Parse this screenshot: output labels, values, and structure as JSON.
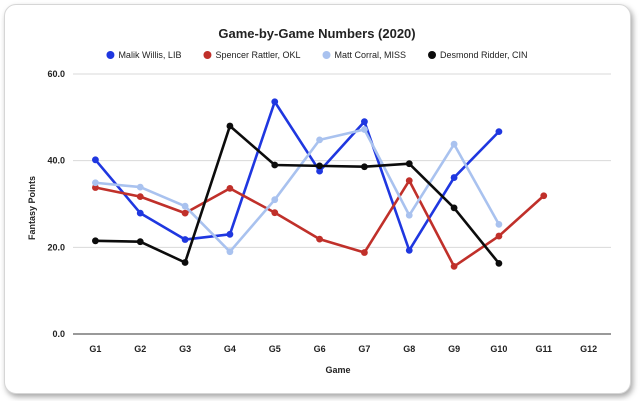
{
  "chart_data": {
    "type": "line",
    "title": "Game-by-Game Numbers (2020)",
    "xlabel": "Game",
    "ylabel": "Fantasy Points",
    "categories": [
      "G1",
      "G2",
      "G3",
      "G4",
      "G5",
      "G6",
      "G7",
      "G8",
      "G9",
      "G10",
      "G11",
      "G12"
    ],
    "ylim": [
      0,
      60
    ],
    "yticks": [
      "0.0",
      "20.0",
      "40.0",
      "60.0"
    ],
    "grid": true,
    "legend_position": "top",
    "series": [
      {
        "name": "Malik Willis, LIB",
        "color": "#1f37e0",
        "values": [
          40.2,
          27.9,
          21.8,
          23.0,
          53.6,
          37.6,
          49.0,
          19.3,
          36.1,
          46.7,
          null,
          null
        ]
      },
      {
        "name": "Spencer Rattler, OKL",
        "color": "#c0302a",
        "values": [
          33.8,
          31.7,
          27.9,
          33.6,
          28.0,
          21.9,
          18.8,
          35.4,
          15.6,
          22.6,
          31.9,
          null
        ]
      },
      {
        "name": "Matt Corral, MISS",
        "color": "#a9c2ef",
        "values": [
          34.9,
          33.9,
          29.5,
          19.0,
          31.0,
          44.8,
          47.2,
          27.4,
          43.8,
          25.3,
          null,
          null
        ]
      },
      {
        "name": "Desmond Ridder, CIN",
        "color": "#0c0c0c",
        "values": [
          21.5,
          21.3,
          16.5,
          48.0,
          39.0,
          38.8,
          38.6,
          39.3,
          29.1,
          16.3,
          null,
          null
        ]
      }
    ]
  }
}
